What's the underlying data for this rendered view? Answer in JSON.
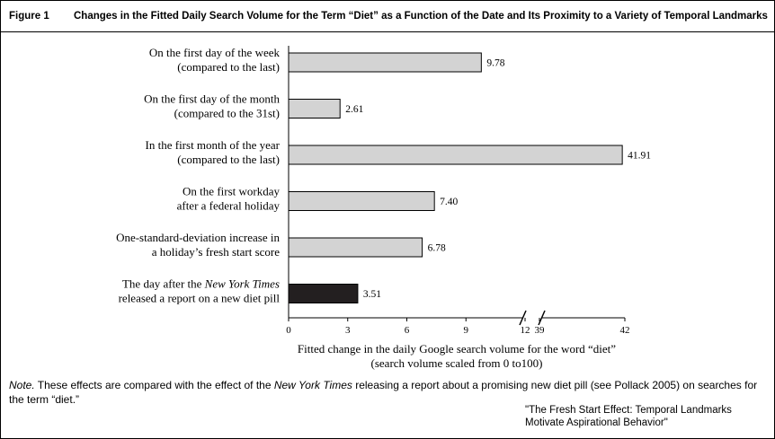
{
  "figure": {
    "label": "Figure 1",
    "title": "Changes in the Fitted Daily Search Volume for the Term “Diet” as a Function of the Date and Its Proximity to a Variety of Temporal Landmarks"
  },
  "chart_data": {
    "type": "bar",
    "orientation": "horizontal",
    "categories": [
      [
        "On the first day of the week",
        "(compared to the last)"
      ],
      [
        "On the first day of the month",
        "(compared to the 31st)"
      ],
      [
        "In the first month of the year",
        "(compared to the last)"
      ],
      [
        "On the first workday",
        "after a federal holiday"
      ],
      [
        "One-standard-deviation increase in",
        "a holiday’s fresh start score"
      ],
      [
        "The day after the |New York Times|",
        "released a report on a new diet pill"
      ]
    ],
    "values": [
      9.78,
      2.61,
      41.91,
      7.4,
      6.78,
      3.51
    ],
    "value_labels": [
      "9.78",
      "2.61",
      "41.91",
      "7.40",
      "6.78",
      "3.51"
    ],
    "bar_colors": [
      "#d3d3d3",
      "#d3d3d3",
      "#d3d3d3",
      "#d3d3d3",
      "#d3d3d3",
      "#231f20"
    ],
    "xticks": [
      "0",
      "3",
      "6",
      "9",
      "12",
      "39",
      "42"
    ],
    "xtick_values": [
      0,
      3,
      6,
      9,
      12,
      39,
      42
    ],
    "axis_break": [
      12,
      39
    ],
    "xlim": [
      0,
      42
    ],
    "xlabel": [
      "Fitted change in the daily Google search volume for the word “diet”",
      "(search volume scaled from 0 to100)"
    ]
  },
  "note": {
    "label": "Note.",
    "text_before": " These effects are compared with the effect of the ",
    "italic": "New York Times",
    "text_after": " releasing a report about a promising new diet pill (see Pollack 2005) on searches for the term “diet.”"
  },
  "source": [
    "\"The Fresh Start Effect: Temporal Landmarks",
    "Motivate Aspirational Behavior\""
  ]
}
